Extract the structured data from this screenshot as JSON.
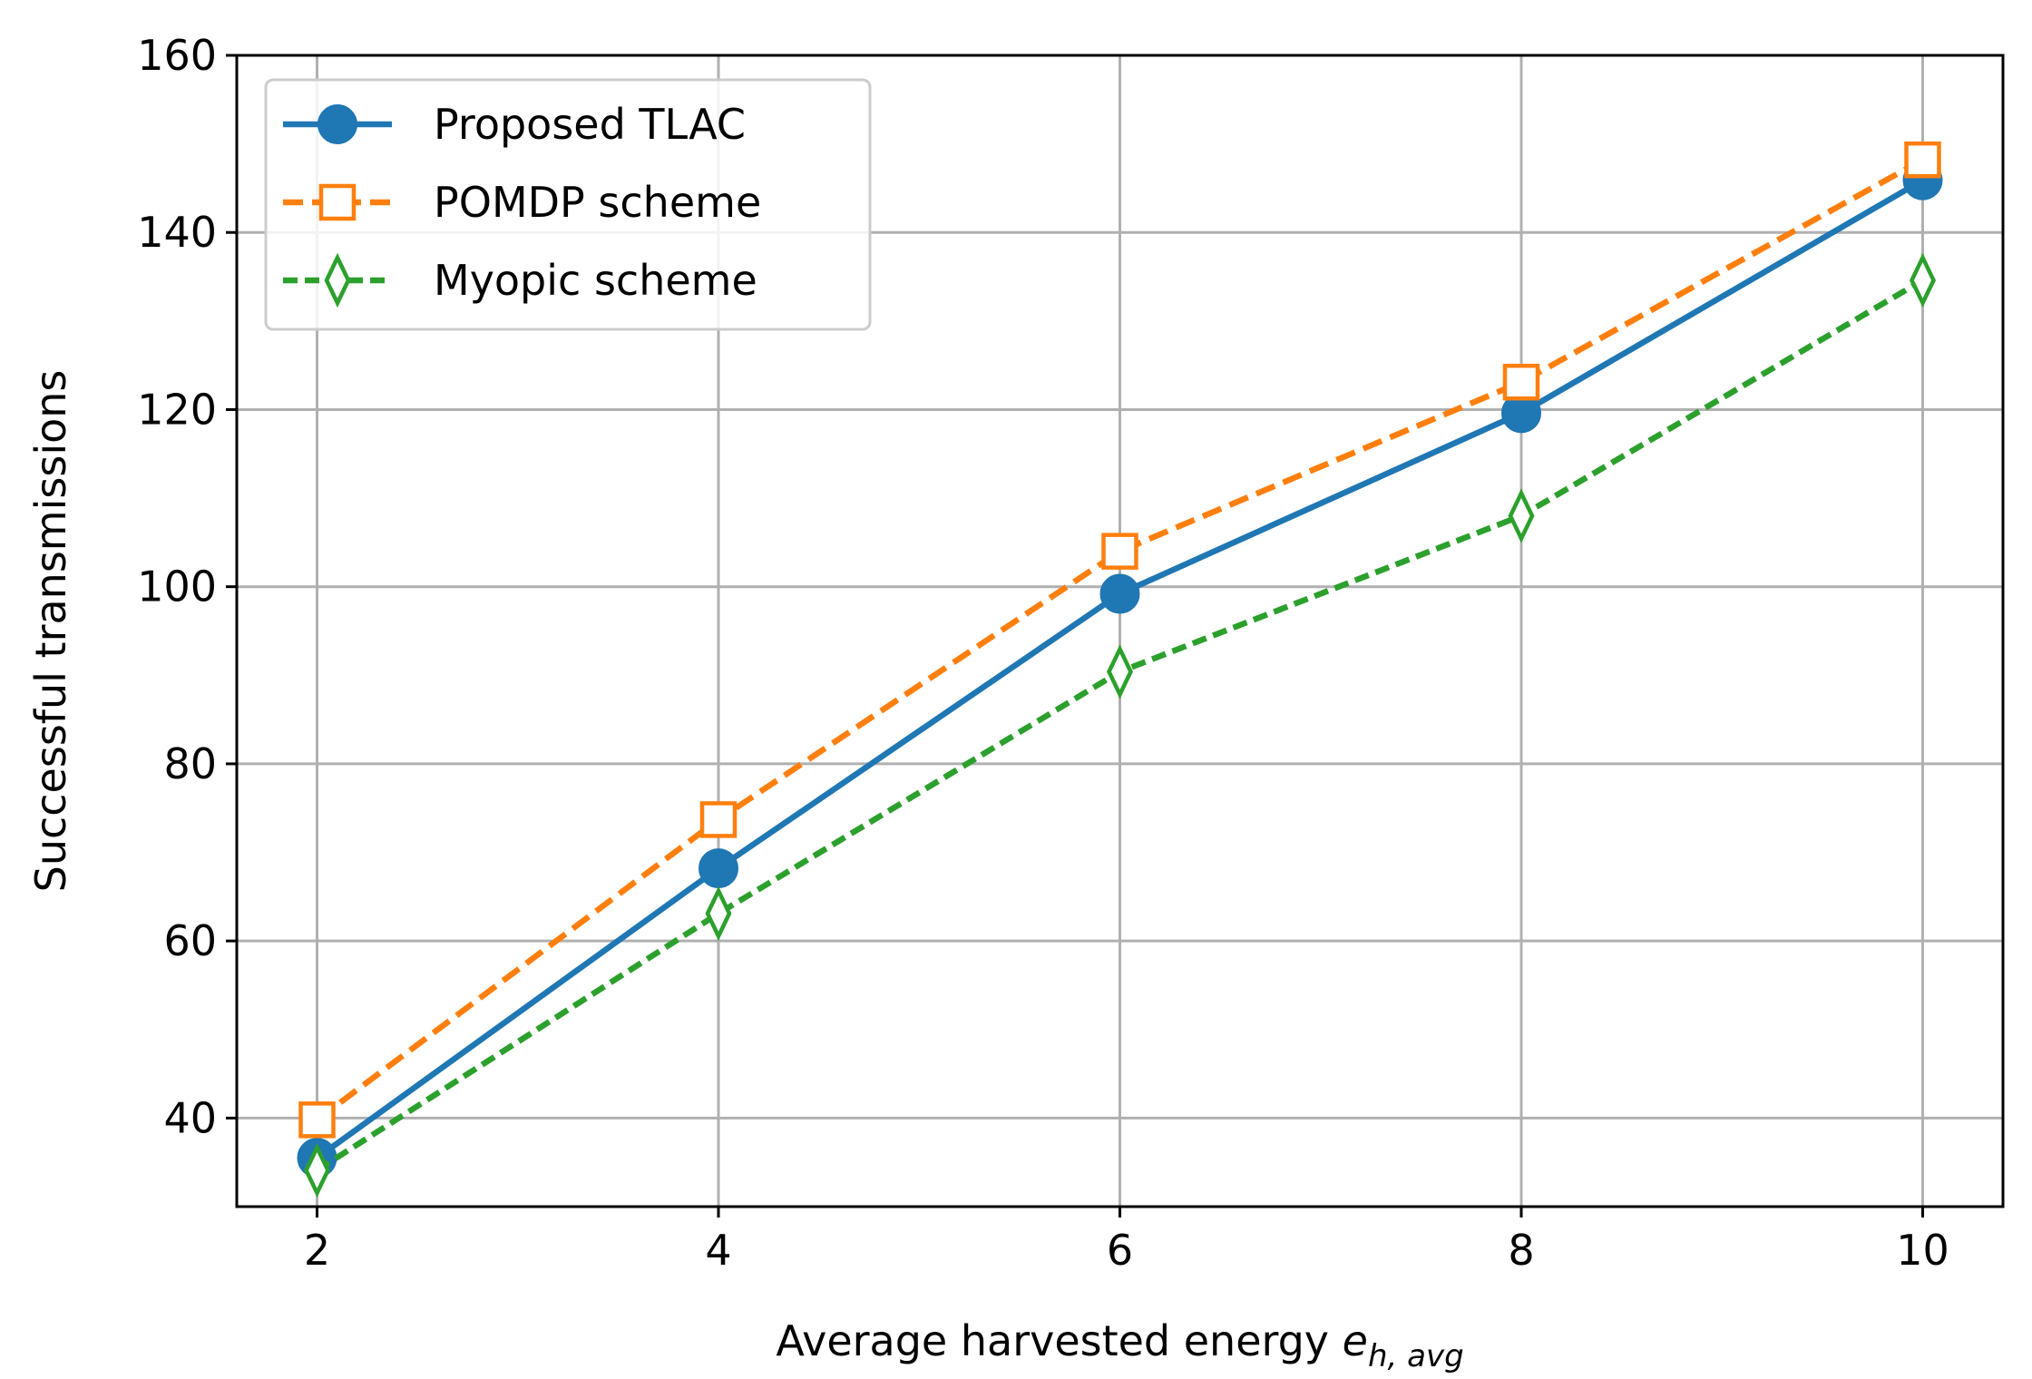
{
  "chart_data": {
    "type": "line",
    "x": [
      2,
      4,
      6,
      8,
      10
    ],
    "xlim": [
      1.6,
      10.4
    ],
    "ylim": [
      30,
      160
    ],
    "xticks": [
      2,
      4,
      6,
      8,
      10
    ],
    "yticks": [
      40,
      60,
      80,
      100,
      120,
      140,
      160
    ],
    "grid": true,
    "legend_position": "top-left",
    "xlabel": "Average harvested energy ",
    "xlabel_math_base": "e",
    "xlabel_math_sub": "h, avg",
    "ylabel": "Successful transmissions",
    "series": [
      {
        "name": "Proposed TLAC",
        "values": [
          35.5,
          68.2,
          99.2,
          119.6,
          145.9
        ],
        "color": "#1f77b4",
        "linestyle": "solid",
        "marker": "circle"
      },
      {
        "name": "POMDP scheme",
        "values": [
          39.8,
          73.7,
          104.0,
          123.1,
          148.2
        ],
        "color": "#ff7f0e",
        "linestyle": "dashed",
        "marker": "square"
      },
      {
        "name": "Myopic scheme",
        "values": [
          34.1,
          63.1,
          90.4,
          108.0,
          134.6
        ],
        "color": "#2ca02c",
        "linestyle": "dashed-short",
        "marker": "thin_diamond"
      }
    ]
  }
}
